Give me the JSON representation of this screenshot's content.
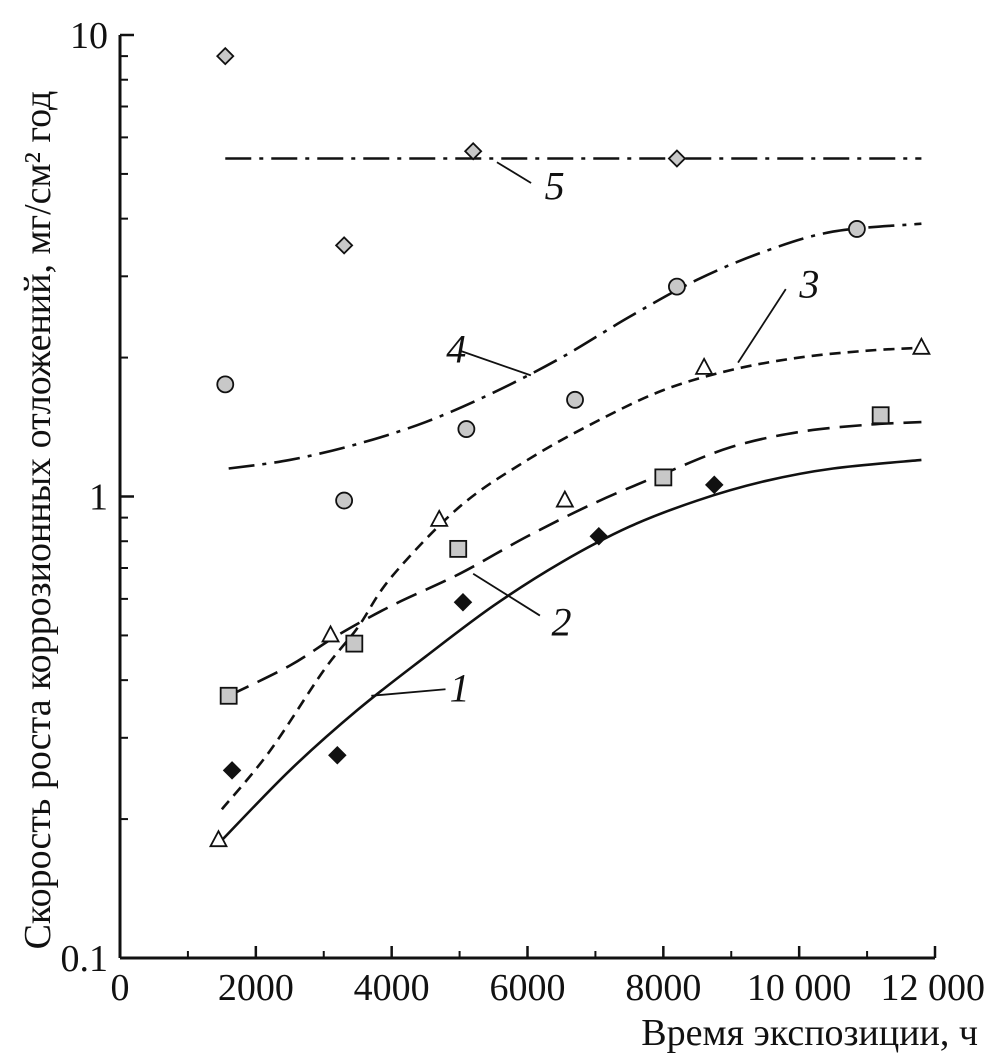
{
  "chart_data": {
    "type": "scatter",
    "title": "",
    "xlabel": "Время экспозиции, ч",
    "ylabel": "Скорость роста коррозионных отложений, мг/см² год",
    "xlim": [
      0,
      12000
    ],
    "ylim": [
      0.1,
      10
    ],
    "yscale": "log",
    "grid": false,
    "x_ticks": [
      {
        "value": 0,
        "label": "0"
      },
      {
        "value": 2000,
        "label": "2000"
      },
      {
        "value": 4000,
        "label": "4000"
      },
      {
        "value": 6000,
        "label": "6000"
      },
      {
        "value": 8000,
        "label": "8000"
      },
      {
        "value": 10000,
        "label": "10 000"
      },
      {
        "value": 12000,
        "label": "12 000"
      }
    ],
    "y_ticks": [
      {
        "value": 0.1,
        "label": "0.1"
      },
      {
        "value": 1,
        "label": "1"
      },
      {
        "value": 10,
        "label": "10"
      }
    ],
    "series": [
      {
        "name": "1",
        "marker": "diamond-filled",
        "color": "#111111",
        "line_style": "solid",
        "points": [
          [
            1650,
            0.255
          ],
          [
            3200,
            0.275
          ],
          [
            5050,
            0.59
          ],
          [
            7050,
            0.82
          ],
          [
            8750,
            1.06
          ]
        ],
        "fit": [
          [
            1500,
            0.18
          ],
          [
            2500,
            0.255
          ],
          [
            3500,
            0.345
          ],
          [
            4500,
            0.45
          ],
          [
            5500,
            0.58
          ],
          [
            6500,
            0.72
          ],
          [
            7500,
            0.86
          ],
          [
            8500,
            0.98
          ],
          [
            9500,
            1.08
          ],
          [
            10500,
            1.15
          ],
          [
            11800,
            1.2
          ]
        ],
        "label_pos": [
          5000,
          0.36
        ]
      },
      {
        "name": "2",
        "marker": "square",
        "color": "#c8c8c8",
        "line_style": "longdash",
        "points": [
          [
            1600,
            0.37
          ],
          [
            3450,
            0.48
          ],
          [
            4980,
            0.77
          ],
          [
            8000,
            1.1
          ],
          [
            11200,
            1.5
          ]
        ],
        "fit": [
          [
            1600,
            0.37
          ],
          [
            2500,
            0.43
          ],
          [
            3200,
            0.5
          ],
          [
            4000,
            0.58
          ],
          [
            5000,
            0.68
          ],
          [
            6000,
            0.82
          ],
          [
            7000,
            0.97
          ],
          [
            8000,
            1.12
          ],
          [
            9000,
            1.28
          ],
          [
            10000,
            1.38
          ],
          [
            11000,
            1.43
          ],
          [
            11800,
            1.45
          ]
        ],
        "label_pos": [
          6500,
          0.5
        ]
      },
      {
        "name": "3",
        "marker": "triangle-open",
        "color": "#ffffff",
        "line_style": "dash",
        "points": [
          [
            1450,
            0.18
          ],
          [
            3100,
            0.5
          ],
          [
            4700,
            0.89
          ],
          [
            6550,
            0.98
          ],
          [
            8600,
            1.9
          ],
          [
            11800,
            2.1
          ]
        ],
        "fit": [
          [
            1500,
            0.21
          ],
          [
            2200,
            0.28
          ],
          [
            3000,
            0.42
          ],
          [
            3500,
            0.52
          ],
          [
            4000,
            0.67
          ],
          [
            5000,
            0.95
          ],
          [
            6000,
            1.2
          ],
          [
            7000,
            1.45
          ],
          [
            8000,
            1.7
          ],
          [
            9000,
            1.88
          ],
          [
            10000,
            2.0
          ],
          [
            11000,
            2.07
          ],
          [
            11800,
            2.1
          ]
        ],
        "label_pos": [
          10150,
          2.7
        ]
      },
      {
        "name": "4",
        "marker": "circle",
        "color": "#c8c8c8",
        "line_style": "dashdot",
        "points": [
          [
            1550,
            1.75
          ],
          [
            3300,
            0.98
          ],
          [
            5100,
            1.4
          ],
          [
            6700,
            1.62
          ],
          [
            8200,
            2.85
          ],
          [
            10850,
            3.8
          ]
        ],
        "fit": [
          [
            1600,
            1.15
          ],
          [
            2500,
            1.2
          ],
          [
            3500,
            1.3
          ],
          [
            4500,
            1.45
          ],
          [
            5500,
            1.68
          ],
          [
            6500,
            2.0
          ],
          [
            7500,
            2.45
          ],
          [
            8500,
            2.95
          ],
          [
            9500,
            3.4
          ],
          [
            10500,
            3.75
          ],
          [
            11800,
            3.9
          ]
        ],
        "label_pos": [
          4950,
          1.95
        ]
      },
      {
        "name": "5",
        "marker": "diamond",
        "color": "#c8c8c8",
        "line_style": "dashdot",
        "points": [
          [
            1550,
            9.0
          ],
          [
            3300,
            3.5
          ],
          [
            5200,
            5.6
          ],
          [
            8200,
            5.4
          ]
        ],
        "fit": [
          [
            1550,
            5.4
          ],
          [
            11800,
            5.4
          ]
        ],
        "label_pos": [
          6400,
          4.4
        ]
      }
    ]
  }
}
